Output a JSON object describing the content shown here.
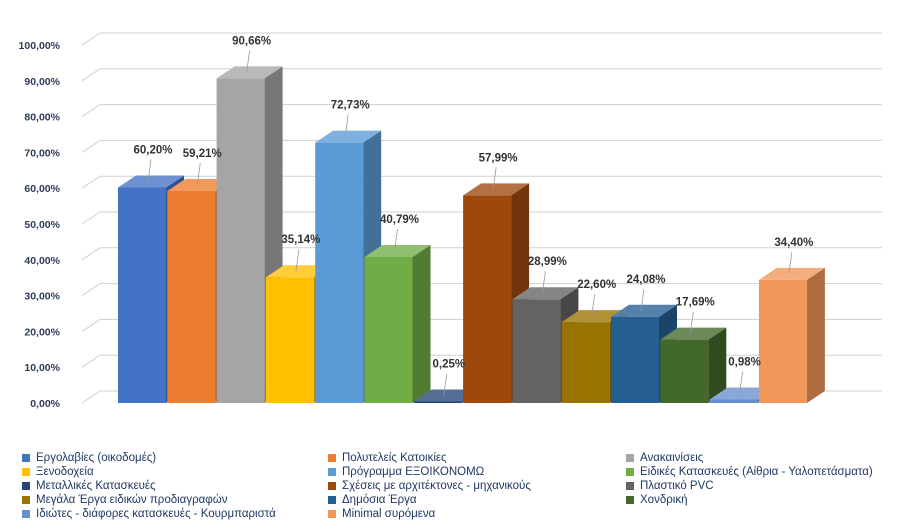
{
  "chart_data": {
    "type": "bar",
    "style": "3d-clustered-column",
    "ylim": [
      0,
      100
    ],
    "ytick_step": 10,
    "y_tick_labels": [
      "0,00%",
      "10,00%",
      "20,00%",
      "30,00%",
      "40,00%",
      "50,00%",
      "60,00%",
      "70,00%",
      "80,00%",
      "90,00%",
      "100,00%"
    ],
    "legend_position": "bottom",
    "series": [
      {
        "name": "Εργολαβίες (οικοδομές)",
        "value": 60.2,
        "label": "60,20%",
        "color": "#4472c4"
      },
      {
        "name": "Πολυτελείς Κατοικίες",
        "value": 59.21,
        "label": "59,21%",
        "color": "#ed7d31"
      },
      {
        "name": "Ανακαινίσεις",
        "value": 90.66,
        "label": "90,66%",
        "color": "#a5a5a5"
      },
      {
        "name": "Ξενοδοχεία",
        "value": 35.14,
        "label": "35,14%",
        "color": "#ffc000"
      },
      {
        "name": "Πρόγραμμα ΕΞΟΙΚΟΝΟΜΩ",
        "value": 72.73,
        "label": "72,73%",
        "color": "#5b9bd5"
      },
      {
        "name": "Ειδικές Κατασκευές (Αίθρια - Υαλοπετάσματα)",
        "value": 40.79,
        "label": "40,79%",
        "color": "#70ad47"
      },
      {
        "name": "Μεταλλικές Κατασκευές",
        "value": 0.25,
        "label": "0,25%",
        "color": "#264478"
      },
      {
        "name": "Σχέσεις με αρχιτέκτονες - μηχανικούς",
        "value": 57.99,
        "label": "57,99%",
        "color": "#9e480e"
      },
      {
        "name": "Πλαστικό PVC",
        "value": 28.99,
        "label": "28,99%",
        "color": "#636363"
      },
      {
        "name": "Μεγάλα Έργα ειδικών προδιαγραφών",
        "value": 22.6,
        "label": "22,60%",
        "color": "#997300"
      },
      {
        "name": "Δημόσια Έργα",
        "value": 24.08,
        "label": "24,08%",
        "color": "#255e91"
      },
      {
        "name": "Χονδρική",
        "value": 17.69,
        "label": "17,69%",
        "color": "#43682b"
      },
      {
        "name": "Ιδιώτες - διάφορες κατασκευές - Κουρμπαριστά",
        "value": 0.98,
        "label": "0,98%",
        "color": "#698ed0"
      },
      {
        "name": "Minimal συρόμενα",
        "value": 34.4,
        "label": "34,40%",
        "color": "#f1975a"
      }
    ]
  }
}
